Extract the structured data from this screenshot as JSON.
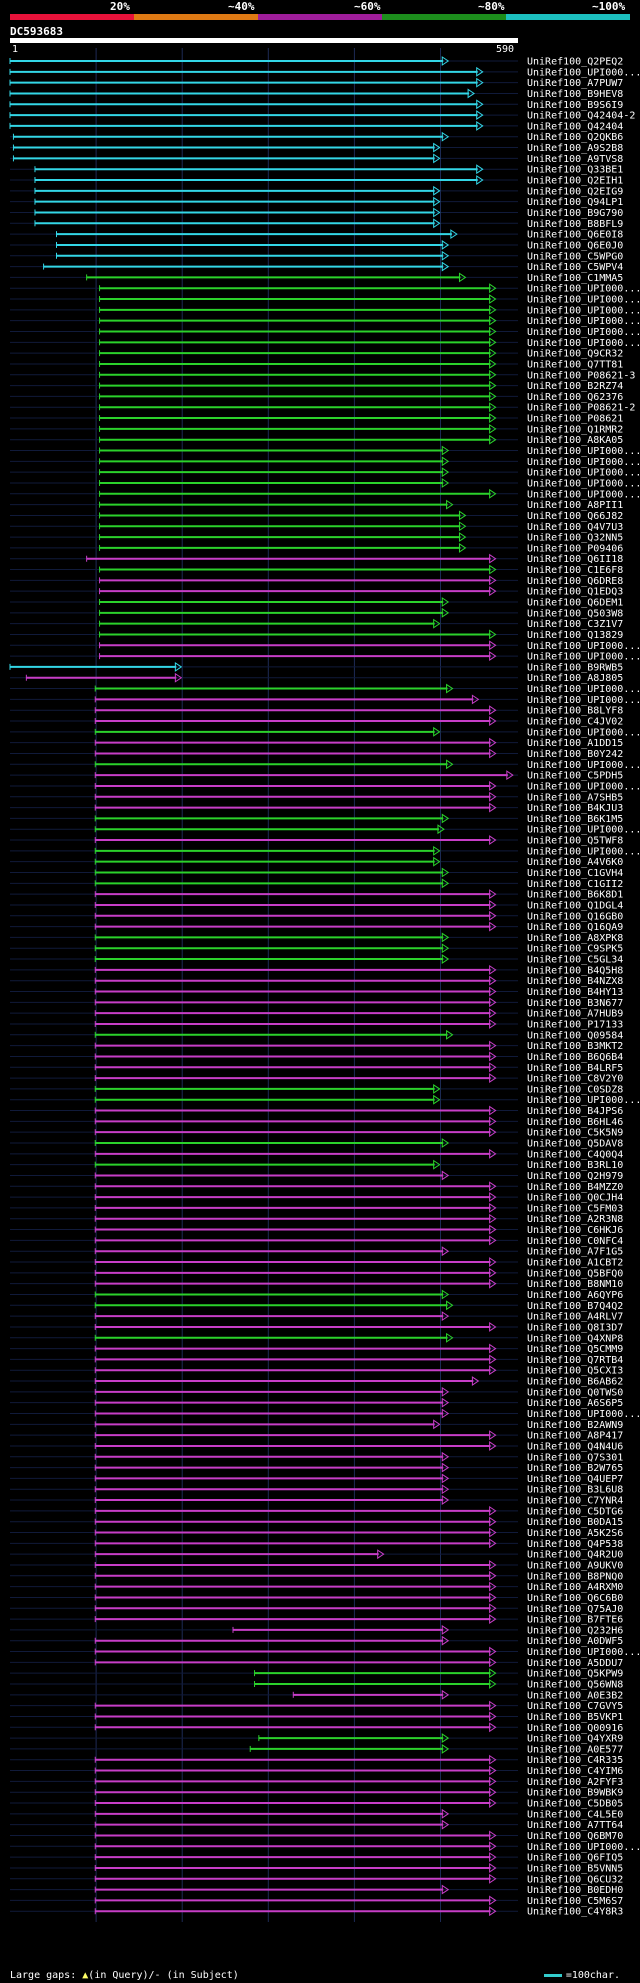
{
  "legend": {
    "labels": [
      "20%",
      "~40%",
      "~60%",
      "~80%",
      "~100%"
    ],
    "colors": [
      "#e8123a",
      "#e07a14",
      "#a01d9b",
      "#1c8e1c",
      "#1cc0c0"
    ]
  },
  "query": {
    "name": "DC593683",
    "start": "1",
    "end": "590"
  },
  "footer": {
    "gaps_prefix": "Large gaps:",
    "gaps_query": "(in Query)/",
    "gaps_subject": "- (in Subject)",
    "scale": "=100char."
  },
  "colors": {
    "cyan": "#33d6e6",
    "green": "#2bd12b",
    "magenta": "#c73ec7",
    "grid": "#1d2a55",
    "gap": "#ffff66"
  },
  "hits": [
    {
      "label": "UniRef100_Q2PEQ2",
      "c": "cyan",
      "s": 1,
      "e": 510
    },
    {
      "label": "UniRef100_UPI000...",
      "c": "cyan",
      "s": 1,
      "e": 550
    },
    {
      "label": "UniRef100_A7PUW7",
      "c": "cyan",
      "s": 1,
      "e": 550
    },
    {
      "label": "UniRef100_B9HEV8",
      "c": "cyan",
      "s": 1,
      "e": 540
    },
    {
      "label": "UniRef100_B9S6I9",
      "c": "cyan",
      "s": 1,
      "e": 550
    },
    {
      "label": "UniRef100_Q42404-2",
      "c": "cyan",
      "s": 1,
      "e": 550
    },
    {
      "label": "UniRef100_Q42404",
      "c": "cyan",
      "s": 1,
      "e": 550
    },
    {
      "label": "UniRef100_Q2QKB6",
      "c": "cyan",
      "s": 5,
      "e": 510
    },
    {
      "label": "UniRef100_A9S2B8",
      "c": "cyan",
      "s": 5,
      "e": 500
    },
    {
      "label": "UniRef100_A9TVS8",
      "c": "cyan",
      "s": 5,
      "e": 500
    },
    {
      "label": "UniRef100_Q33BE1",
      "c": "cyan",
      "s": 30,
      "e": 550
    },
    {
      "label": "UniRef100_Q2EIH1",
      "c": "cyan",
      "s": 30,
      "e": 550
    },
    {
      "label": "UniRef100_Q2EIG9",
      "c": "cyan",
      "s": 30,
      "e": 500
    },
    {
      "label": "UniRef100_Q94LP1",
      "c": "cyan",
      "s": 30,
      "e": 500
    },
    {
      "label": "UniRef100_B9G790",
      "c": "cyan",
      "s": 30,
      "e": 500
    },
    {
      "label": "UniRef100_B8BFL9",
      "c": "cyan",
      "s": 30,
      "e": 500
    },
    {
      "label": "UniRef100_Q6E0I8",
      "c": "cyan",
      "s": 55,
      "e": 520
    },
    {
      "label": "UniRef100_Q6E0J0",
      "c": "cyan",
      "s": 55,
      "e": 510
    },
    {
      "label": "UniRef100_C5WPG0",
      "c": "cyan",
      "s": 55,
      "e": 510
    },
    {
      "label": "UniRef100_C5WPV4",
      "c": "cyan",
      "s": 40,
      "e": 510
    },
    {
      "label": "UniRef100_C1MMA5",
      "c": "green",
      "s": 90,
      "e": 530
    },
    {
      "label": "UniRef100_UPI000...",
      "c": "green",
      "s": 105,
      "e": 565
    },
    {
      "label": "UniRef100_UPI000...",
      "c": "green",
      "s": 105,
      "e": 565
    },
    {
      "label": "UniRef100_UPI000...",
      "c": "green",
      "s": 105,
      "e": 565
    },
    {
      "label": "UniRef100_UPI000...",
      "c": "green",
      "s": 105,
      "e": 565
    },
    {
      "label": "UniRef100_UPI000...",
      "c": "green",
      "s": 105,
      "e": 565
    },
    {
      "label": "UniRef100_UPI000...",
      "c": "green",
      "s": 105,
      "e": 565
    },
    {
      "label": "UniRef100_Q9CR32",
      "c": "green",
      "s": 105,
      "e": 565
    },
    {
      "label": "UniRef100_Q7TT81",
      "c": "green",
      "s": 105,
      "e": 565
    },
    {
      "label": "UniRef100_P08621-3",
      "c": "green",
      "s": 105,
      "e": 565
    },
    {
      "label": "UniRef100_B2RZ74",
      "c": "green",
      "s": 105,
      "e": 565
    },
    {
      "label": "UniRef100_Q62376",
      "c": "green",
      "s": 105,
      "e": 565
    },
    {
      "label": "UniRef100_P08621-2",
      "c": "green",
      "s": 105,
      "e": 565
    },
    {
      "label": "UniRef100_P08621",
      "c": "green",
      "s": 105,
      "e": 565
    },
    {
      "label": "UniRef100_Q1RMR2",
      "c": "green",
      "s": 105,
      "e": 565
    },
    {
      "label": "UniRef100_A8KA05",
      "c": "green",
      "s": 105,
      "e": 565
    },
    {
      "label": "UniRef100_UPI000...",
      "c": "green",
      "s": 105,
      "e": 510
    },
    {
      "label": "UniRef100_UPI000...",
      "c": "green",
      "s": 105,
      "e": 510
    },
    {
      "label": "UniRef100_UPI000...",
      "c": "green",
      "s": 105,
      "e": 510
    },
    {
      "label": "UniRef100_UPI000...",
      "c": "green",
      "s": 105,
      "e": 510
    },
    {
      "label": "UniRef100_UPI000...",
      "c": "green",
      "s": 105,
      "e": 565
    },
    {
      "label": "UniRef100_A8PII1",
      "c": "green",
      "s": 105,
      "e": 515
    },
    {
      "label": "UniRef100_Q66J82",
      "c": "green",
      "s": 105,
      "e": 530
    },
    {
      "label": "UniRef100_Q4V7U3",
      "c": "green",
      "s": 105,
      "e": 530
    },
    {
      "label": "UniRef100_Q32NN5",
      "c": "green",
      "s": 105,
      "e": 530
    },
    {
      "label": "UniRef100_P09406",
      "c": "green",
      "s": 105,
      "e": 530
    },
    {
      "label": "UniRef100_Q6II18",
      "c": "magenta",
      "s": 90,
      "e": 565
    },
    {
      "label": "UniRef100_C1E6F8",
      "c": "green",
      "s": 105,
      "e": 565
    },
    {
      "label": "UniRef100_Q6DRE8",
      "c": "magenta",
      "s": 105,
      "e": 565
    },
    {
      "label": "UniRef100_Q1EDQ3",
      "c": "magenta",
      "s": 105,
      "e": 565
    },
    {
      "label": "UniRef100_Q6DEM1",
      "c": "green",
      "s": 105,
      "e": 510
    },
    {
      "label": "UniRef100_Q503W8",
      "c": "green",
      "s": 105,
      "e": 510
    },
    {
      "label": "UniRef100_C3Z1V7",
      "c": "green",
      "s": 105,
      "e": 500
    },
    {
      "label": "UniRef100_Q13829",
      "c": "green",
      "s": 105,
      "e": 565
    },
    {
      "label": "UniRef100_UPI000...",
      "c": "magenta",
      "s": 105,
      "e": 565
    },
    {
      "label": "UniRef100_UPI000...",
      "c": "magenta",
      "s": 105,
      "e": 565
    },
    {
      "label": "UniRef100_B9RWB5",
      "c": "cyan",
      "s": 1,
      "e": 200
    },
    {
      "label": "UniRef100_A8J805",
      "c": "magenta",
      "s": 20,
      "e": 200
    },
    {
      "label": "UniRef100_UPI000...",
      "c": "green",
      "s": 100,
      "e": 515
    },
    {
      "label": "UniRef100_UPI000...",
      "c": "magenta",
      "s": 100,
      "e": 545
    },
    {
      "label": "UniRef100_B8LYF8",
      "c": "magenta",
      "s": 100,
      "e": 565
    },
    {
      "label": "UniRef100_C4JV02",
      "c": "magenta",
      "s": 100,
      "e": 565
    },
    {
      "label": "UniRef100_UPI000...",
      "c": "green",
      "s": 100,
      "e": 500
    },
    {
      "label": "UniRef100_A1DD15",
      "c": "magenta",
      "s": 100,
      "e": 565
    },
    {
      "label": "UniRef100_B0Y242",
      "c": "magenta",
      "s": 100,
      "e": 565
    },
    {
      "label": "UniRef100_UPI000...",
      "c": "green",
      "s": 100,
      "e": 515
    },
    {
      "label": "UniRef100_C5PDH5",
      "c": "magenta",
      "s": 100,
      "e": 585
    },
    {
      "label": "UniRef100_UPI000...",
      "c": "magenta",
      "s": 100,
      "e": 565
    },
    {
      "label": "UniRef100_A7SHB5",
      "c": "magenta",
      "s": 100,
      "e": 565
    },
    {
      "label": "UniRef100_B4KJU3",
      "c": "magenta",
      "s": 100,
      "e": 565
    },
    {
      "label": "UniRef100_B6K1M5",
      "c": "green",
      "s": 100,
      "e": 510
    },
    {
      "label": "UniRef100_UPI000...",
      "c": "green",
      "s": 100,
      "e": 505
    },
    {
      "label": "UniRef100_Q5TWF8",
      "c": "magenta",
      "s": 100,
      "e": 565
    },
    {
      "label": "UniRef100_UPI000...",
      "c": "green",
      "s": 100,
      "e": 500
    },
    {
      "label": "UniRef100_A4V6K0",
      "c": "green",
      "s": 100,
      "e": 500
    },
    {
      "label": "UniRef100_C1GVH4",
      "c": "green",
      "s": 100,
      "e": 510
    },
    {
      "label": "UniRef100_C1GII2",
      "c": "green",
      "s": 100,
      "e": 510
    },
    {
      "label": "UniRef100_B6K8D1",
      "c": "magenta",
      "s": 100,
      "e": 565
    },
    {
      "label": "UniRef100_Q1DGL4",
      "c": "magenta",
      "s": 100,
      "e": 565
    },
    {
      "label": "UniRef100_Q16GB0",
      "c": "magenta",
      "s": 100,
      "e": 565
    },
    {
      "label": "UniRef100_Q16QA9",
      "c": "magenta",
      "s": 100,
      "e": 565
    },
    {
      "label": "UniRef100_A8XPK8",
      "c": "green",
      "s": 100,
      "e": 510
    },
    {
      "label": "UniRef100_C9SPK5",
      "c": "green",
      "s": 100,
      "e": 510
    },
    {
      "label": "UniRef100_C5GL34",
      "c": "green",
      "s": 100,
      "e": 510
    },
    {
      "label": "UniRef100_B4Q5H8",
      "c": "magenta",
      "s": 100,
      "e": 565
    },
    {
      "label": "UniRef100_B4NZX8",
      "c": "magenta",
      "s": 100,
      "e": 565
    },
    {
      "label": "UniRef100_B4HY13",
      "c": "magenta",
      "s": 100,
      "e": 565
    },
    {
      "label": "UniRef100_B3N677",
      "c": "magenta",
      "s": 100,
      "e": 565
    },
    {
      "label": "UniRef100_A7HUB9",
      "c": "magenta",
      "s": 100,
      "e": 565
    },
    {
      "label": "UniRef100_P17133",
      "c": "magenta",
      "s": 100,
      "e": 565
    },
    {
      "label": "UniRef100_Q09584",
      "c": "green",
      "s": 100,
      "e": 515
    },
    {
      "label": "UniRef100_B3MKT2",
      "c": "magenta",
      "s": 100,
      "e": 565
    },
    {
      "label": "UniRef100_B6Q6B4",
      "c": "magenta",
      "s": 100,
      "e": 565
    },
    {
      "label": "UniRef100_B4LRF5",
      "c": "magenta",
      "s": 100,
      "e": 565
    },
    {
      "label": "UniRef100_C8V2Y0",
      "c": "magenta",
      "s": 100,
      "e": 565
    },
    {
      "label": "UniRef100_C0SDZ8",
      "c": "green",
      "s": 100,
      "e": 500
    },
    {
      "label": "UniRef100_UPI000...",
      "c": "green",
      "s": 100,
      "e": 500
    },
    {
      "label": "UniRef100_B4JPS6",
      "c": "magenta",
      "s": 100,
      "e": 565
    },
    {
      "label": "UniRef100_B6HL46",
      "c": "magenta",
      "s": 100,
      "e": 565
    },
    {
      "label": "UniRef100_C5K5N9",
      "c": "magenta",
      "s": 100,
      "e": 565
    },
    {
      "label": "UniRef100_Q5DAV8",
      "c": "green",
      "s": 100,
      "e": 510
    },
    {
      "label": "UniRef100_C4Q0Q4",
      "c": "magenta",
      "s": 100,
      "e": 565
    },
    {
      "label": "UniRef100_B3RL10",
      "c": "green",
      "s": 100,
      "e": 500
    },
    {
      "label": "UniRef100_Q2H979",
      "c": "magenta",
      "s": 100,
      "e": 510
    },
    {
      "label": "UniRef100_B4MZZ0",
      "c": "magenta",
      "s": 100,
      "e": 565
    },
    {
      "label": "UniRef100_Q0CJH4",
      "c": "magenta",
      "s": 100,
      "e": 565
    },
    {
      "label": "UniRef100_C5FM03",
      "c": "magenta",
      "s": 100,
      "e": 565
    },
    {
      "label": "UniRef100_A2R3N8",
      "c": "magenta",
      "s": 100,
      "e": 565
    },
    {
      "label": "UniRef100_C6HKJ6",
      "c": "magenta",
      "s": 100,
      "e": 565
    },
    {
      "label": "UniRef100_C0NFC4",
      "c": "magenta",
      "s": 100,
      "e": 565
    },
    {
      "label": "UniRef100_A7F1G5",
      "c": "magenta",
      "s": 100,
      "e": 510
    },
    {
      "label": "UniRef100_A1CBT2",
      "c": "magenta",
      "s": 100,
      "e": 565
    },
    {
      "label": "UniRef100_Q5BFQ0",
      "c": "magenta",
      "s": 100,
      "e": 565
    },
    {
      "label": "UniRef100_B8NM10",
      "c": "magenta",
      "s": 100,
      "e": 565
    },
    {
      "label": "UniRef100_A6QYP6",
      "c": "green",
      "s": 100,
      "e": 510
    },
    {
      "label": "UniRef100_B7Q4Q2",
      "c": "green",
      "s": 100,
      "e": 515
    },
    {
      "label": "UniRef100_A4RLV7",
      "c": "magenta",
      "s": 100,
      "e": 510
    },
    {
      "label": "UniRef100_Q8I3D7",
      "c": "magenta",
      "s": 100,
      "e": 565
    },
    {
      "label": "UniRef100_Q4XNP8",
      "c": "green",
      "s": 100,
      "e": 515
    },
    {
      "label": "UniRef100_Q5CMM9",
      "c": "magenta",
      "s": 100,
      "e": 565
    },
    {
      "label": "UniRef100_Q7RTB4",
      "c": "magenta",
      "s": 100,
      "e": 565
    },
    {
      "label": "UniRef100_Q5CXI3",
      "c": "magenta",
      "s": 100,
      "e": 565
    },
    {
      "label": "UniRef100_B6AB62",
      "c": "magenta",
      "s": 100,
      "e": 545
    },
    {
      "label": "UniRef100_Q0TWS0",
      "c": "magenta",
      "s": 100,
      "e": 510
    },
    {
      "label": "UniRef100_A6S6P5",
      "c": "magenta",
      "s": 100,
      "e": 510
    },
    {
      "label": "UniRef100_UPI000...",
      "c": "magenta",
      "s": 100,
      "e": 510
    },
    {
      "label": "UniRef100_B2AWN9",
      "c": "magenta",
      "s": 100,
      "e": 500
    },
    {
      "label": "UniRef100_A8P417",
      "c": "magenta",
      "s": 100,
      "e": 565
    },
    {
      "label": "UniRef100_Q4N4U6",
      "c": "magenta",
      "s": 100,
      "e": 565
    },
    {
      "label": "UniRef100_Q7S301",
      "c": "magenta",
      "s": 100,
      "e": 510
    },
    {
      "label": "UniRef100_B2W765",
      "c": "magenta",
      "s": 100,
      "e": 510
    },
    {
      "label": "UniRef100_Q4UEP7",
      "c": "magenta",
      "s": 100,
      "e": 510
    },
    {
      "label": "UniRef100_B3L6U8",
      "c": "magenta",
      "s": 100,
      "e": 510
    },
    {
      "label": "UniRef100_C7YNR4",
      "c": "magenta",
      "s": 100,
      "e": 510
    },
    {
      "label": "UniRef100_C5DTG6",
      "c": "magenta",
      "s": 100,
      "e": 565
    },
    {
      "label": "UniRef100_B0DA15",
      "c": "magenta",
      "s": 100,
      "e": 565
    },
    {
      "label": "UniRef100_A5K2S6",
      "c": "magenta",
      "s": 100,
      "e": 565
    },
    {
      "label": "UniRef100_Q4P538",
      "c": "magenta",
      "s": 100,
      "e": 565
    },
    {
      "label": "UniRef100_Q4R2U0",
      "c": "magenta",
      "s": 100,
      "e": 435
    },
    {
      "label": "UniRef100_A9UKV0",
      "c": "magenta",
      "s": 100,
      "e": 565
    },
    {
      "label": "UniRef100_B8PNQ0",
      "c": "magenta",
      "s": 100,
      "e": 565
    },
    {
      "label": "UniRef100_A4RXM0",
      "c": "magenta",
      "s": 100,
      "e": 565
    },
    {
      "label": "UniRef100_Q6C6B0",
      "c": "magenta",
      "s": 100,
      "e": 565
    },
    {
      "label": "UniRef100_Q75AJ0",
      "c": "magenta",
      "s": 100,
      "e": 565
    },
    {
      "label": "UniRef100_B7FTE6",
      "c": "magenta",
      "s": 100,
      "e": 565
    },
    {
      "label": "UniRef100_Q232H6",
      "c": "magenta",
      "s": 260,
      "e": 510
    },
    {
      "label": "UniRef100_A0DWF5",
      "c": "magenta",
      "s": 100,
      "e": 510
    },
    {
      "label": "UniRef100_UPI000...",
      "c": "magenta",
      "s": 100,
      "e": 565
    },
    {
      "label": "UniRef100_A5DDU7",
      "c": "magenta",
      "s": 100,
      "e": 565
    },
    {
      "label": "UniRef100_Q5KPW9",
      "c": "green",
      "s": 285,
      "e": 565
    },
    {
      "label": "UniRef100_Q56WN8",
      "c": "green",
      "s": 285,
      "e": 565
    },
    {
      "label": "UniRef100_A0E3B2",
      "c": "magenta",
      "s": 330,
      "e": 510
    },
    {
      "label": "UniRef100_C7GVY5",
      "c": "magenta",
      "s": 100,
      "e": 565
    },
    {
      "label": "UniRef100_B5VKP1",
      "c": "magenta",
      "s": 100,
      "e": 565
    },
    {
      "label": "UniRef100_Q00916",
      "c": "magenta",
      "s": 100,
      "e": 565
    },
    {
      "label": "UniRef100_Q4YXR9",
      "c": "green",
      "s": 290,
      "e": 510
    },
    {
      "label": "UniRef100_A0E577",
      "c": "green",
      "s": 280,
      "e": 510
    },
    {
      "label": "UniRef100_C4R335",
      "c": "magenta",
      "s": 100,
      "e": 565
    },
    {
      "label": "UniRef100_C4YIM6",
      "c": "magenta",
      "s": 100,
      "e": 565
    },
    {
      "label": "UniRef100_A2FYF3",
      "c": "magenta",
      "s": 100,
      "e": 565
    },
    {
      "label": "UniRef100_B9WBK9",
      "c": "magenta",
      "s": 100,
      "e": 565
    },
    {
      "label": "UniRef100_C5DB05",
      "c": "magenta",
      "s": 100,
      "e": 565
    },
    {
      "label": "UniRef100_C4L5E0",
      "c": "magenta",
      "s": 100,
      "e": 510
    },
    {
      "label": "UniRef100_A7TT64",
      "c": "magenta",
      "s": 100,
      "e": 510
    },
    {
      "label": "UniRef100_Q6BM70",
      "c": "magenta",
      "s": 100,
      "e": 565
    },
    {
      "label": "UniRef100_UPI000...",
      "c": "magenta",
      "s": 100,
      "e": 565
    },
    {
      "label": "UniRef100_Q6FIQ5",
      "c": "magenta",
      "s": 100,
      "e": 565
    },
    {
      "label": "UniRef100_B5VNN5",
      "c": "magenta",
      "s": 100,
      "e": 565
    },
    {
      "label": "UniRef100_Q6CU32",
      "c": "magenta",
      "s": 100,
      "e": 565
    },
    {
      "label": "UniRef100_B0EDH0",
      "c": "magenta",
      "s": 100,
      "e": 510
    },
    {
      "label": "UniRef100_C5M6S7",
      "c": "magenta",
      "s": 100,
      "e": 565
    },
    {
      "label": "UniRef100_C4Y8R3",
      "c": "magenta",
      "s": 100,
      "e": 565
    }
  ]
}
